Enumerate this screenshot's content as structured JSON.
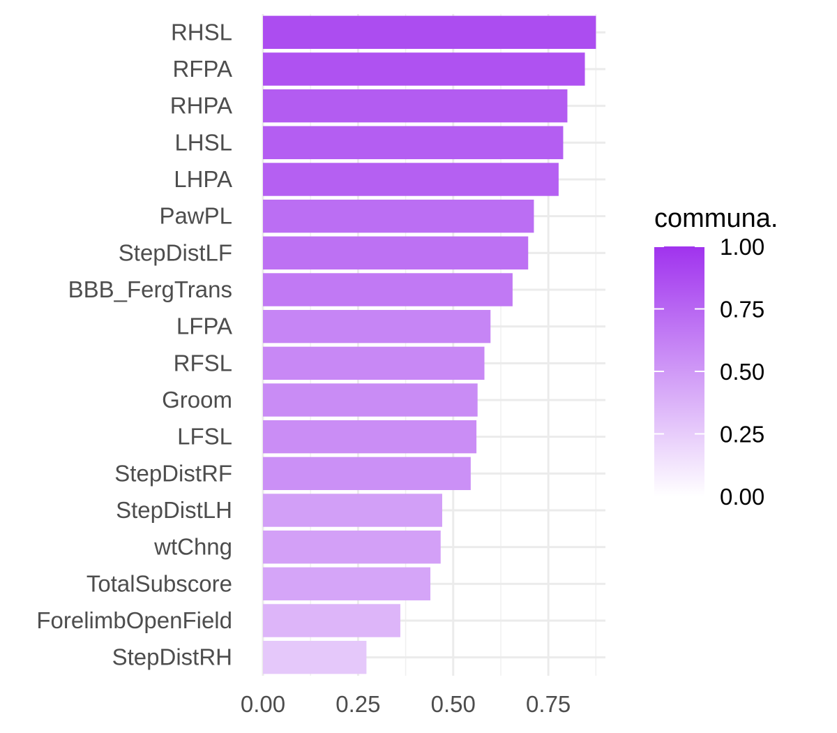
{
  "chart_data": {
    "type": "bar",
    "orientation": "horizontal",
    "categories": [
      "RHSL",
      "RFPA",
      "RHPA",
      "LHSL",
      "LHPA",
      "PawPL",
      "StepDistLF",
      "BBB_FergTrans",
      "LFPA",
      "RFSL",
      "Groom",
      "LFSL",
      "StepDistRF",
      "StepDistLH",
      "wtChng",
      "TotalSubscore",
      "ForelimbOpenField",
      "StepDistRH"
    ],
    "values": [
      0.875,
      0.846,
      0.8,
      0.789,
      0.777,
      0.712,
      0.697,
      0.656,
      0.598,
      0.582,
      0.564,
      0.561,
      0.546,
      0.471,
      0.467,
      0.44,
      0.361,
      0.272
    ],
    "xlim": [
      0,
      0.9
    ],
    "x_ticks": [
      0.0,
      0.25,
      0.5,
      0.75
    ],
    "x_tick_labels": [
      "0.00",
      "0.25",
      "0.50",
      "0.75"
    ],
    "xlabel": "",
    "ylabel": "",
    "title": "",
    "grid": true,
    "legend": {
      "title": "communa.",
      "placement": "right",
      "type": "colorbar",
      "range": [
        0,
        1
      ],
      "ticks": [
        1.0,
        0.75,
        0.5,
        0.25,
        0.0
      ],
      "tick_labels": [
        "1.00",
        "0.75",
        "0.50",
        "0.25",
        "0.00"
      ],
      "color_low": "#ffffff",
      "color_high": "#a033ee"
    }
  }
}
